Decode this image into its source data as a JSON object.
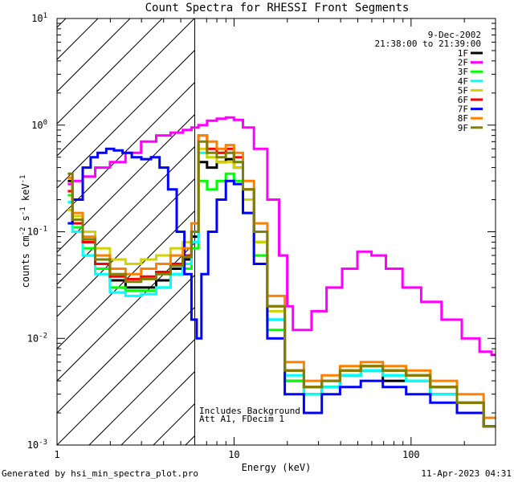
{
  "chart_data": {
    "type": "line",
    "title": "Count Spectra for RHESSI Front Segments",
    "xlabel": "Energy (keV)",
    "ylabel_parts": [
      "counts cm",
      "-2",
      " s",
      "-1",
      " keV",
      "-1"
    ],
    "xscale": "log",
    "yscale": "log",
    "xlim": [
      1,
      300
    ],
    "ylim": [
      0.001,
      10
    ],
    "x_ticks": [
      {
        "value": 1,
        "label": "1"
      },
      {
        "value": 10,
        "label": "10"
      },
      {
        "value": 100,
        "label": "100"
      }
    ],
    "y_ticks": [
      {
        "value": 0.001,
        "base": "10",
        "exp": "-3"
      },
      {
        "value": 0.01,
        "base": "10",
        "exp": "-2"
      },
      {
        "value": 0.1,
        "base": "10",
        "exp": "-1"
      },
      {
        "value": 1,
        "base": "10",
        "exp": "0"
      },
      {
        "value": 10,
        "base": "10",
        "exp": "1"
      }
    ],
    "date": "9-Dec-2002",
    "time_range": "21:38:00 to 21:39:00",
    "annotation_lines": [
      "Includes Background",
      "Att A1, FDecim 1"
    ],
    "hatched_region_keV": [
      1,
      6
    ],
    "series": [
      {
        "name": "1F",
        "color": "#000000",
        "x": [
          1.15,
          1.3,
          1.5,
          1.8,
          2.2,
          2.7,
          3.3,
          4,
          4.8,
          5.5,
          6,
          6.6,
          7.5,
          8.5,
          9.5,
          10.5,
          12,
          14,
          17,
          22,
          28,
          35,
          45,
          60,
          80,
          110,
          150,
          220,
          300
        ],
        "y": [
          0.3,
          0.12,
          0.08,
          0.05,
          0.035,
          0.03,
          0.03,
          0.035,
          0.045,
          0.055,
          0.09,
          0.45,
          0.4,
          0.45,
          0.48,
          0.4,
          0.2,
          0.08,
          0.015,
          0.004,
          0.003,
          0.0035,
          0.0045,
          0.005,
          0.004,
          0.004,
          0.003,
          0.0025,
          0.0015
        ]
      },
      {
        "name": "2F",
        "color": "#ff00ff",
        "x": [
          1.15,
          1.3,
          1.5,
          1.8,
          2.2,
          2.7,
          3.3,
          4,
          4.8,
          5.5,
          6,
          6.6,
          7.5,
          8.5,
          9.5,
          10.5,
          12,
          14,
          17,
          19,
          21,
          22,
          25,
          30,
          37,
          45,
          55,
          65,
          80,
          100,
          130,
          170,
          220,
          270,
          300
        ],
        "y": [
          0.28,
          0.3,
          0.33,
          0.4,
          0.45,
          0.55,
          0.7,
          0.8,
          0.85,
          0.9,
          0.95,
          1.0,
          1.1,
          1.15,
          1.18,
          1.12,
          0.95,
          0.6,
          0.2,
          0.06,
          0.02,
          0.012,
          0.012,
          0.018,
          0.03,
          0.045,
          0.065,
          0.06,
          0.045,
          0.03,
          0.022,
          0.015,
          0.01,
          0.0075,
          0.007
        ]
      },
      {
        "name": "3F",
        "color": "#00ff00",
        "x": [
          1.15,
          1.3,
          1.5,
          1.8,
          2.2,
          2.7,
          3.3,
          4,
          4.8,
          5.5,
          6,
          6.6,
          7.5,
          8.5,
          9.5,
          10.5,
          12,
          14,
          17,
          22,
          28,
          35,
          45,
          60,
          80,
          110,
          150,
          220,
          300
        ],
        "y": [
          0.22,
          0.11,
          0.07,
          0.045,
          0.03,
          0.028,
          0.028,
          0.03,
          0.04,
          0.045,
          0.07,
          0.3,
          0.25,
          0.3,
          0.35,
          0.3,
          0.15,
          0.06,
          0.012,
          0.004,
          0.003,
          0.0035,
          0.0045,
          0.005,
          0.0045,
          0.004,
          0.0035,
          0.0025,
          0.0015
        ]
      },
      {
        "name": "4F",
        "color": "#00ffff",
        "x": [
          1.15,
          1.3,
          1.5,
          1.8,
          2.2,
          2.7,
          3.3,
          4,
          4.8,
          5.5,
          6,
          6.6,
          7.5,
          8.5,
          9.5,
          10.5,
          12,
          14,
          17,
          22,
          28,
          35,
          45,
          60,
          80,
          110,
          150,
          220,
          300
        ],
        "y": [
          0.19,
          0.1,
          0.06,
          0.04,
          0.027,
          0.025,
          0.026,
          0.03,
          0.04,
          0.05,
          0.08,
          0.55,
          0.5,
          0.55,
          0.55,
          0.45,
          0.2,
          0.08,
          0.015,
          0.0045,
          0.003,
          0.0035,
          0.0045,
          0.005,
          0.0045,
          0.004,
          0.003,
          0.0025,
          0.0015
        ]
      },
      {
        "name": "5F",
        "color": "#d2d200",
        "x": [
          1.15,
          1.3,
          1.5,
          1.8,
          2.2,
          2.7,
          3.3,
          4,
          4.8,
          5.5,
          6,
          6.6,
          7.5,
          8.5,
          9.5,
          10.5,
          12,
          14,
          17,
          22,
          28,
          35,
          45,
          60,
          80,
          110,
          150,
          220,
          300
        ],
        "y": [
          0.16,
          0.14,
          0.1,
          0.07,
          0.055,
          0.05,
          0.055,
          0.06,
          0.07,
          0.08,
          0.12,
          0.6,
          0.5,
          0.45,
          0.45,
          0.4,
          0.2,
          0.08,
          0.018,
          0.005,
          0.0035,
          0.004,
          0.005,
          0.0055,
          0.005,
          0.0045,
          0.0035,
          0.0025,
          0.0015
        ]
      },
      {
        "name": "6F",
        "color": "#ff0000",
        "x": [
          1.15,
          1.3,
          1.5,
          1.8,
          2.2,
          2.7,
          3.3,
          4,
          4.8,
          5.5,
          6,
          6.6,
          7.5,
          8.5,
          9.5,
          10.5,
          12,
          14,
          17,
          22,
          28,
          35,
          45,
          60,
          80,
          110,
          150,
          220,
          300
        ],
        "y": [
          0.24,
          0.12,
          0.08,
          0.05,
          0.038,
          0.036,
          0.038,
          0.042,
          0.05,
          0.06,
          0.1,
          0.8,
          0.6,
          0.55,
          0.6,
          0.5,
          0.25,
          0.1,
          0.02,
          0.005,
          0.0035,
          0.004,
          0.005,
          0.0055,
          0.005,
          0.0045,
          0.0035,
          0.0025,
          0.0015
        ]
      },
      {
        "name": "7F",
        "color": "#0000ff",
        "x": [
          1.15,
          1.3,
          1.5,
          1.6,
          1.8,
          2.0,
          2.2,
          2.5,
          2.8,
          3.2,
          3.6,
          4.0,
          4.5,
          5.0,
          5.5,
          6,
          6.3,
          6.8,
          7.5,
          8.5,
          9.5,
          10.5,
          12,
          14,
          17,
          22,
          28,
          35,
          45,
          60,
          80,
          110,
          150,
          220,
          300
        ],
        "y": [
          0.12,
          0.2,
          0.4,
          0.5,
          0.55,
          0.6,
          0.58,
          0.55,
          0.5,
          0.48,
          0.5,
          0.4,
          0.25,
          0.1,
          0.04,
          0.015,
          0.01,
          0.04,
          0.1,
          0.2,
          0.3,
          0.28,
          0.15,
          0.05,
          0.01,
          0.003,
          0.002,
          0.003,
          0.0035,
          0.004,
          0.0035,
          0.003,
          0.0025,
          0.002,
          0.0015
        ]
      },
      {
        "name": "8F",
        "color": "#ff8000",
        "x": [
          1.15,
          1.3,
          1.5,
          1.8,
          2.2,
          2.7,
          3.3,
          4,
          4.8,
          5.5,
          6,
          6.6,
          7.5,
          8.5,
          9.5,
          10.5,
          12,
          14,
          17,
          22,
          28,
          35,
          45,
          60,
          80,
          110,
          150,
          220,
          300
        ],
        "y": [
          0.32,
          0.15,
          0.09,
          0.06,
          0.045,
          0.04,
          0.045,
          0.05,
          0.06,
          0.07,
          0.12,
          0.8,
          0.7,
          0.6,
          0.65,
          0.55,
          0.3,
          0.12,
          0.025,
          0.006,
          0.004,
          0.0045,
          0.0055,
          0.006,
          0.0055,
          0.005,
          0.004,
          0.003,
          0.0018
        ]
      },
      {
        "name": "9F",
        "color": "#808000",
        "x": [
          1.15,
          1.3,
          1.5,
          1.8,
          2.2,
          2.7,
          3.3,
          4,
          4.8,
          5.5,
          6,
          6.6,
          7.5,
          8.5,
          9.5,
          10.5,
          12,
          14,
          17,
          22,
          28,
          35,
          45,
          60,
          80,
          110,
          150,
          220,
          300
        ],
        "y": [
          0.35,
          0.13,
          0.085,
          0.055,
          0.04,
          0.034,
          0.036,
          0.04,
          0.048,
          0.058,
          0.1,
          0.7,
          0.55,
          0.5,
          0.55,
          0.45,
          0.25,
          0.1,
          0.02,
          0.005,
          0.0035,
          0.004,
          0.005,
          0.0055,
          0.005,
          0.0045,
          0.0035,
          0.0025,
          0.0015
        ]
      }
    ]
  },
  "footer": {
    "left": "Generated by hsi_min_spectra_plot.pro",
    "right": "11-Apr-2023 04:31"
  }
}
